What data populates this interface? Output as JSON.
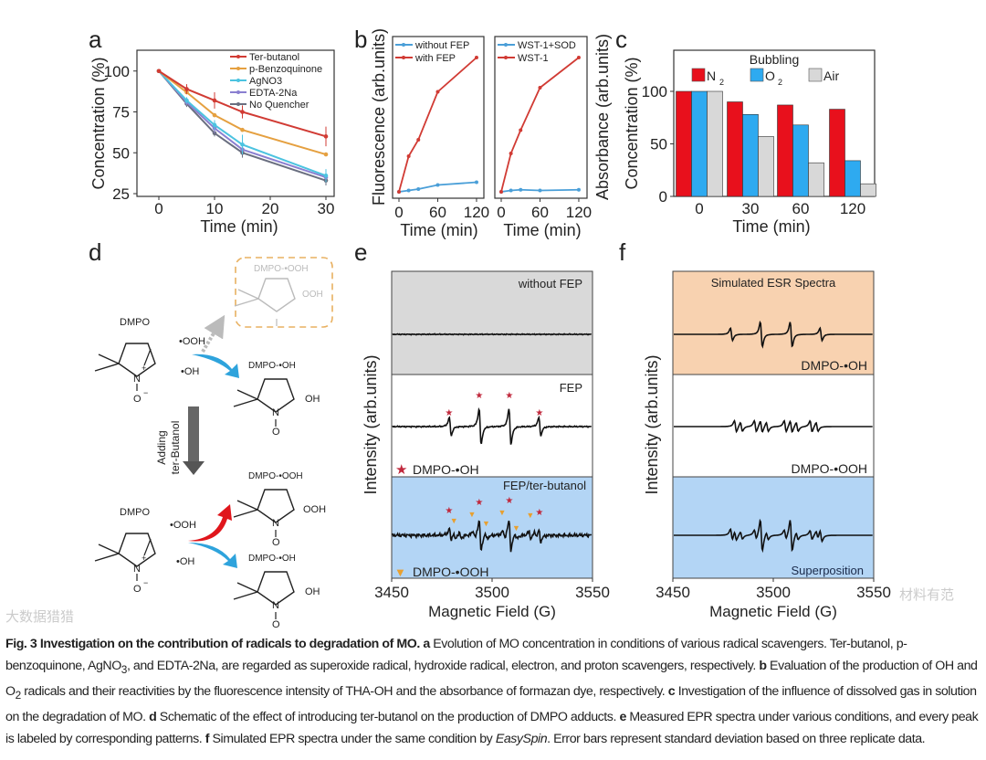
{
  "panels": {
    "a": "a",
    "b": "b",
    "c": "c",
    "d": "d",
    "e": "e",
    "f": "f"
  },
  "colors": {
    "red": "#d13b34",
    "orange": "#e5a040",
    "cyan": "#4cc3e0",
    "purple": "#8a7fd0",
    "gray": "#6a6f80",
    "blue": "#4a9fd8",
    "n2": "#e8101c",
    "o2": "#2eaaf0",
    "air": "#d8d8d8",
    "peach": "#f8d2b0",
    "lightgray": "#d9d9d9",
    "lightblue": "#b3d5f5"
  },
  "chart_data": [
    {
      "type": "line",
      "panel": "a",
      "xlabel": "Time (min)",
      "ylabel": "Concentration (%)",
      "xlim": [
        0,
        30
      ],
      "ylim": [
        25,
        112
      ],
      "xticks": [
        0,
        10,
        20,
        30
      ],
      "yticks": [
        25,
        50,
        75,
        100
      ],
      "x": [
        0,
        5,
        10,
        15,
        30
      ],
      "series": [
        {
          "name": "Ter-butanol",
          "color": "#d13b34",
          "values": [
            100,
            89,
            82,
            75,
            60
          ],
          "err": [
            0,
            3,
            5,
            4,
            6
          ]
        },
        {
          "name": "p-Benzoquinone",
          "color": "#e5a040",
          "values": [
            100,
            87,
            73,
            64,
            49
          ],
          "err": [
            0,
            1,
            1,
            1,
            1
          ]
        },
        {
          "name": "AgNO3",
          "color": "#4cc3e0",
          "values": [
            100,
            82,
            67,
            55,
            36
          ],
          "err": [
            0,
            2,
            3,
            6,
            4
          ]
        },
        {
          "name": "EDTA-2Na",
          "color": "#8a7fd0",
          "values": [
            100,
            81,
            65,
            52,
            35
          ],
          "err": [
            0,
            2,
            3,
            3,
            3
          ]
        },
        {
          "name": "No Quencher",
          "color": "#6a6f80",
          "values": [
            100,
            80,
            62,
            50,
            33
          ],
          "err": [
            0,
            2,
            2,
            3,
            3
          ]
        }
      ]
    },
    {
      "type": "line",
      "panel": "b-left",
      "xlabel": "Time (min)",
      "ylabel": "Fluorescence (arb.units)",
      "xticks": [
        0,
        60,
        120
      ],
      "x": [
        0,
        15,
        30,
        60,
        120
      ],
      "series": [
        {
          "name": "without FEP",
          "color": "#4a9fd8",
          "values": [
            2,
            3,
            4,
            7,
            9
          ]
        },
        {
          "name": "with FEP",
          "color": "#d13b34",
          "values": [
            2,
            28,
            40,
            75,
            100
          ]
        }
      ]
    },
    {
      "type": "line",
      "panel": "b-right",
      "xlabel": "Time (min)",
      "ylabel": "Absorbance (arb.units)",
      "xticks": [
        0,
        60,
        120
      ],
      "x": [
        0,
        15,
        30,
        60,
        120
      ],
      "series": [
        {
          "name": "WST-1+SOD",
          "color": "#4a9fd8",
          "values": [
            2,
            3,
            3.5,
            3,
            3.5
          ]
        },
        {
          "name": "WST-1",
          "color": "#d13b34",
          "values": [
            2,
            30,
            47,
            78,
            100
          ]
        }
      ]
    },
    {
      "type": "bar",
      "panel": "c",
      "title": "Bubbling",
      "xlabel": "Time (min)",
      "ylabel": "Concentration (%)",
      "categories": [
        "0",
        "30",
        "60",
        "120"
      ],
      "yticks": [
        0,
        50,
        100
      ],
      "ylim": [
        0,
        140
      ],
      "series": [
        {
          "name": "N",
          "sub": "2",
          "color": "#e8101c",
          "values": [
            100,
            90,
            87,
            83
          ]
        },
        {
          "name": "O",
          "sub": "2",
          "color": "#2eaaf0",
          "values": [
            100,
            78,
            68,
            34
          ]
        },
        {
          "name": "Air",
          "sub": "",
          "color": "#d8d8d8",
          "values": [
            100,
            57,
            32,
            12
          ]
        }
      ]
    },
    {
      "type": "line",
      "panel": "e",
      "xlabel": "Magnetic Field (G)",
      "ylabel": "Intensity (arb.units)",
      "xlim": [
        3450,
        3550
      ],
      "xticks": [
        3450,
        3500,
        3550
      ],
      "spectra": [
        {
          "label": "without FEP",
          "bg": "#d9d9d9",
          "oh": 0,
          "ooh": 0,
          "noise": 0.3
        },
        {
          "label": "FEP",
          "bg": "#ffffff",
          "oh": 1,
          "ooh": 0,
          "noise": 0.4,
          "legend": "DMPO-•OH"
        },
        {
          "label": "FEP/ter-butanol",
          "bg": "#b3d5f5",
          "oh": 0.75,
          "ooh": 0.5,
          "noise": 1.2,
          "legend": "DMPO-•OOH"
        }
      ],
      "oh_peaks": [
        3479,
        3494,
        3509,
        3524
      ],
      "oh_amps": [
        1,
        2,
        2,
        1
      ],
      "ooh_peaks": [
        3481,
        3484,
        3491,
        3494,
        3497,
        3506,
        3509,
        3512,
        3519,
        3522
      ],
      "ooh_amps": [
        1,
        0.8,
        1,
        1,
        0.8,
        1,
        1,
        0.8,
        1,
        0.8
      ]
    },
    {
      "type": "line",
      "panel": "f",
      "xlabel": "Magnetic Field (G)",
      "ylabel": "Intensity (arb.units)",
      "xlim": [
        3450,
        3550
      ],
      "xticks": [
        3450,
        3500,
        3550
      ],
      "title": "Simulated ESR Spectra",
      "spectra": [
        {
          "label": "DMPO-•OH",
          "bg": "#f8d2b0",
          "oh": 1,
          "ooh": 0
        },
        {
          "label": "DMPO-•OOH",
          "bg": "#ffffff",
          "oh": 0,
          "ooh": 1
        },
        {
          "label": "Superposition",
          "bg": "#b3d5f5",
          "oh": 0.9,
          "ooh": 0.8
        }
      ]
    }
  ],
  "scheme": {
    "dmpo": "DMPO",
    "ooh": "•OOH",
    "oh": "•OH",
    "dmpo_ooh": "DMPO-•OOH",
    "dmpo_oh": "DMPO-•OH",
    "ooh_group": "OOH",
    "oh_group": "OH",
    "n": "N",
    "o": "O",
    "plus": "+",
    "minus": "−",
    "adding": "Adding",
    "ter_butanol": "ter-Butanol"
  },
  "caption": {
    "fig": "Fig. 3 Investigation on the contribution of radicals to degradation of MO.",
    "a": "a",
    "a_text": " Evolution of MO concentration in conditions of various radical scavengers. Ter-butanol, p-benzoquinone, AgNO",
    "sub3": "3",
    "a_text2": ", and EDTA-2Na, are regarded as superoxide radical, hydroxide radical, electron, and proton scavengers, respectively.",
    "b": "b",
    "b_text": " Evaluation of the production of OH and O",
    "sub2": "2",
    "b_text2": " radicals and their reactivities by the fluorescence intensity of THA-OH and the absorbance of formazan dye, respectively.",
    "c": "c",
    "c_text": " Investigation of the influence of dissolved gas in solution on the degradation of MO.",
    "d": "d",
    "d_text": " Schematic of the effect of introducing ter-butanol on the production of DMPO adducts.",
    "e": "e",
    "e_text": " Measured EPR spectra under various conditions, and every peak is labeled by corresponding patterns.",
    "f": "f",
    "f_text": " Simulated EPR spectra under the same condition by ",
    "easyspin": "EasySpin",
    "f_text2": ". Error bars represent standard deviation based on three replicate data."
  },
  "watermarks": {
    "left": "大数据猎猎",
    "right": "材料有范"
  }
}
